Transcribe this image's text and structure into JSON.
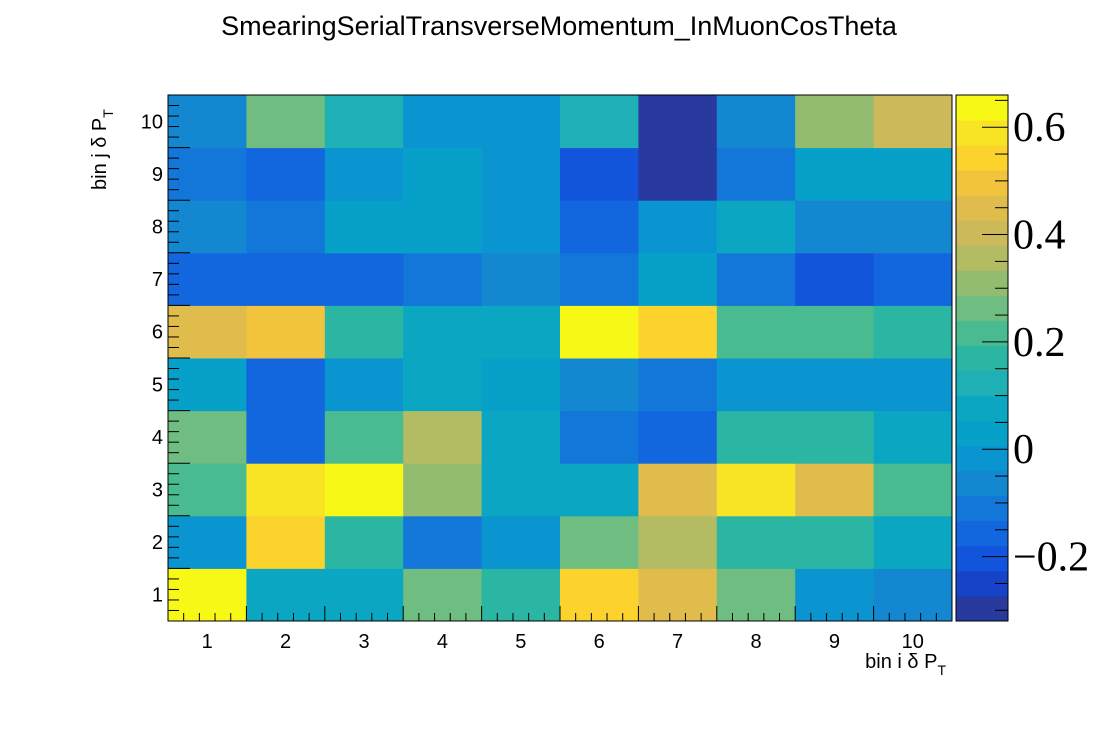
{
  "chart_data": {
    "type": "heatmap",
    "title": "SmearingSerialTransverseMomentum_InMuonCosTheta",
    "xlabel": {
      "main": "bin i δ P",
      "sub": "T"
    },
    "ylabel": {
      "main": "bin j δ P",
      "sub": "T"
    },
    "x_bins": [
      "1",
      "2",
      "3",
      "4",
      "5",
      "6",
      "7",
      "8",
      "9",
      "10"
    ],
    "y_bins": [
      "1",
      "2",
      "3",
      "4",
      "5",
      "6",
      "7",
      "8",
      "9",
      "10"
    ],
    "z_range": [
      -0.32,
      0.66
    ],
    "z_ticks": [
      {
        "value": 0.6,
        "label": "0.6"
      },
      {
        "value": 0.4,
        "label": "0.4"
      },
      {
        "value": 0.2,
        "label": "0.2"
      },
      {
        "value": 0.0,
        "label": "0"
      },
      {
        "value": -0.2,
        "label": "−0.2"
      }
    ],
    "palette": [
      "#283a9e",
      "#1743c8",
      "#1254dc",
      "#1266de",
      "#1277d8",
      "#1387d0",
      "#0a95d0",
      "#06a0c8",
      "#0ba7c2",
      "#1eb0b4",
      "#2ab6a2",
      "#4abb90",
      "#6fbd80",
      "#93bc70",
      "#b3bb63",
      "#cbb95a",
      "#e0bc4c",
      "#f2c33c",
      "#fbd32c",
      "#f8e424",
      "#f8f816"
    ],
    "values": [
      [
        0.62,
        0.09,
        0.09,
        0.27,
        0.16,
        0.52,
        0.46,
        0.24,
        0.0,
        -0.06
      ],
      [
        0.0,
        0.53,
        0.15,
        -0.1,
        0.0,
        0.28,
        0.36,
        0.15,
        0.15,
        0.08
      ],
      [
        0.21,
        0.58,
        0.63,
        0.31,
        0.09,
        0.09,
        0.43,
        0.57,
        0.43,
        0.23
      ],
      [
        0.28,
        -0.14,
        0.23,
        0.37,
        0.09,
        -0.1,
        -0.18,
        0.15,
        0.15,
        0.06
      ],
      [
        0.05,
        -0.14,
        0.0,
        0.08,
        0.04,
        -0.06,
        -0.12,
        0.0,
        0.0,
        0.0
      ],
      [
        0.43,
        0.5,
        0.15,
        0.09,
        0.09,
        0.66,
        0.53,
        0.2,
        0.2,
        0.15
      ],
      [
        -0.16,
        -0.16,
        -0.16,
        -0.11,
        -0.06,
        -0.1,
        0.03,
        -0.1,
        -0.2,
        -0.14
      ],
      [
        -0.06,
        -0.1,
        0.05,
        0.05,
        0.0,
        -0.15,
        0.0,
        0.09,
        -0.06,
        -0.06
      ],
      [
        -0.1,
        -0.16,
        0.0,
        0.05,
        0.0,
        -0.2,
        -0.32,
        -0.1,
        0.05,
        0.05
      ],
      [
        -0.06,
        0.26,
        0.1,
        0.0,
        0.0,
        0.1,
        -0.32,
        -0.08,
        0.33,
        0.4
      ]
    ]
  }
}
